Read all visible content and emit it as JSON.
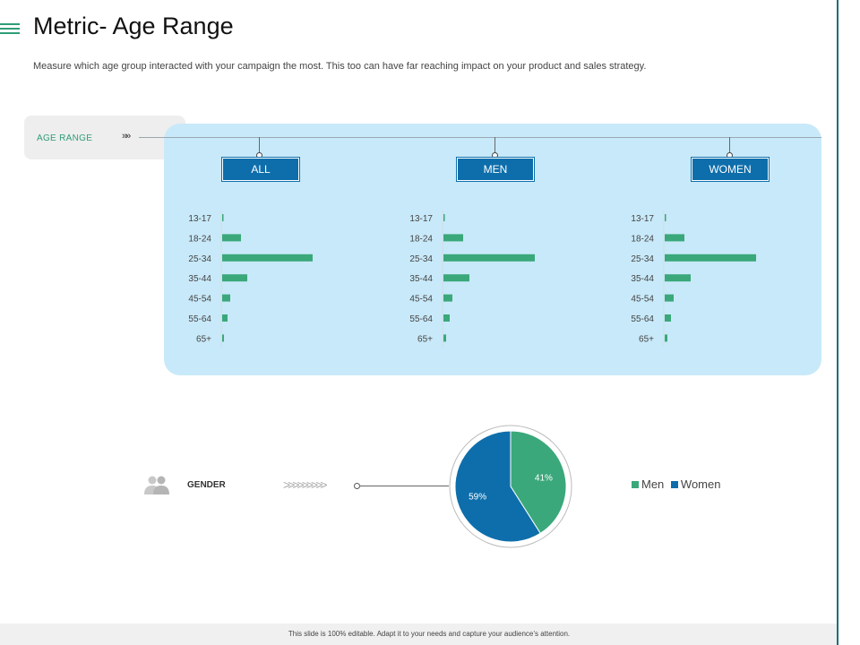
{
  "slide": {
    "title": "Metric- Age Range",
    "subtitle": "Measure which age group interacted with your campaign the most. This too can have far reaching impact on your product and sales strategy.",
    "age_range_label": "AGE RANGE",
    "age_range_chevrons": "»»",
    "gender_label": "GENDER",
    "gender_chevrons": ">>>>>>>>>",
    "footer": "This slide is 100% editable. Adapt it to your needs and capture your audience’s attention."
  },
  "colors": {
    "accent_green": "#3aa87a",
    "accent_blue": "#0e6eab",
    "panel_bg": "#c8e9f9"
  },
  "chart_data": [
    {
      "type": "bar",
      "orientation": "horizontal",
      "header": "ALL",
      "categories": [
        "13-17",
        "18-24",
        "25-34",
        "35-44",
        "45-54",
        "55-64",
        "65+"
      ],
      "values": [
        0.5,
        21,
        101,
        28,
        9,
        6,
        2
      ],
      "xlim": [
        0,
        110
      ]
    },
    {
      "type": "bar",
      "orientation": "horizontal",
      "header": "MEN",
      "categories": [
        "13-17",
        "18-24",
        "25-34",
        "35-44",
        "45-54",
        "55-64",
        "65+"
      ],
      "values": [
        1,
        22,
        102,
        29,
        10,
        7,
        3
      ],
      "xlim": [
        0,
        110
      ]
    },
    {
      "type": "bar",
      "orientation": "horizontal",
      "header": "WOMEN",
      "categories": [
        "13-17",
        "18-24",
        "25-34",
        "35-44",
        "45-54",
        "55-64",
        "65+"
      ],
      "values": [
        1,
        22,
        102,
        29,
        10,
        7,
        3
      ],
      "xlim": [
        0,
        110
      ]
    },
    {
      "type": "pie",
      "labels": [
        "Men",
        "Women"
      ],
      "values": [
        41,
        59
      ],
      "data_labels": [
        "41%",
        "59%"
      ],
      "colors": [
        "#3aa87a",
        "#0e6eab"
      ],
      "legend": "right"
    }
  ]
}
